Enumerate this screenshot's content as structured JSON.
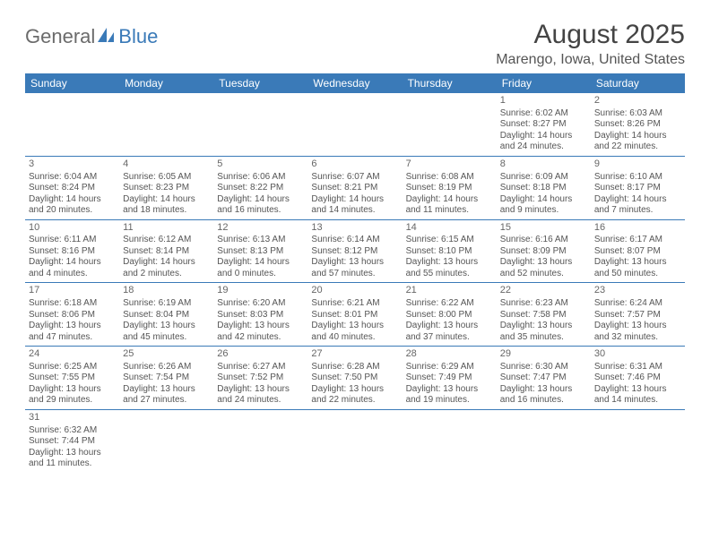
{
  "logo": {
    "part1": "General",
    "part2": "Blue"
  },
  "title": "August 2025",
  "location": "Marengo, Iowa, United States",
  "colors": {
    "header_bg": "#3a7ab8",
    "header_text": "#ffffff",
    "border": "#3a7ab8",
    "body_text": "#555555",
    "title_text": "#444444",
    "logo_gray": "#6b6b6b",
    "logo_blue": "#3a7ab8",
    "background": "#ffffff"
  },
  "day_headers": [
    "Sunday",
    "Monday",
    "Tuesday",
    "Wednesday",
    "Thursday",
    "Friday",
    "Saturday"
  ],
  "weeks": [
    [
      null,
      null,
      null,
      null,
      null,
      {
        "n": "1",
        "sunrise": "Sunrise: 6:02 AM",
        "sunset": "Sunset: 8:27 PM",
        "d1": "Daylight: 14 hours",
        "d2": "and 24 minutes."
      },
      {
        "n": "2",
        "sunrise": "Sunrise: 6:03 AM",
        "sunset": "Sunset: 8:26 PM",
        "d1": "Daylight: 14 hours",
        "d2": "and 22 minutes."
      }
    ],
    [
      {
        "n": "3",
        "sunrise": "Sunrise: 6:04 AM",
        "sunset": "Sunset: 8:24 PM",
        "d1": "Daylight: 14 hours",
        "d2": "and 20 minutes."
      },
      {
        "n": "4",
        "sunrise": "Sunrise: 6:05 AM",
        "sunset": "Sunset: 8:23 PM",
        "d1": "Daylight: 14 hours",
        "d2": "and 18 minutes."
      },
      {
        "n": "5",
        "sunrise": "Sunrise: 6:06 AM",
        "sunset": "Sunset: 8:22 PM",
        "d1": "Daylight: 14 hours",
        "d2": "and 16 minutes."
      },
      {
        "n": "6",
        "sunrise": "Sunrise: 6:07 AM",
        "sunset": "Sunset: 8:21 PM",
        "d1": "Daylight: 14 hours",
        "d2": "and 14 minutes."
      },
      {
        "n": "7",
        "sunrise": "Sunrise: 6:08 AM",
        "sunset": "Sunset: 8:19 PM",
        "d1": "Daylight: 14 hours",
        "d2": "and 11 minutes."
      },
      {
        "n": "8",
        "sunrise": "Sunrise: 6:09 AM",
        "sunset": "Sunset: 8:18 PM",
        "d1": "Daylight: 14 hours",
        "d2": "and 9 minutes."
      },
      {
        "n": "9",
        "sunrise": "Sunrise: 6:10 AM",
        "sunset": "Sunset: 8:17 PM",
        "d1": "Daylight: 14 hours",
        "d2": "and 7 minutes."
      }
    ],
    [
      {
        "n": "10",
        "sunrise": "Sunrise: 6:11 AM",
        "sunset": "Sunset: 8:16 PM",
        "d1": "Daylight: 14 hours",
        "d2": "and 4 minutes."
      },
      {
        "n": "11",
        "sunrise": "Sunrise: 6:12 AM",
        "sunset": "Sunset: 8:14 PM",
        "d1": "Daylight: 14 hours",
        "d2": "and 2 minutes."
      },
      {
        "n": "12",
        "sunrise": "Sunrise: 6:13 AM",
        "sunset": "Sunset: 8:13 PM",
        "d1": "Daylight: 14 hours",
        "d2": "and 0 minutes."
      },
      {
        "n": "13",
        "sunrise": "Sunrise: 6:14 AM",
        "sunset": "Sunset: 8:12 PM",
        "d1": "Daylight: 13 hours",
        "d2": "and 57 minutes."
      },
      {
        "n": "14",
        "sunrise": "Sunrise: 6:15 AM",
        "sunset": "Sunset: 8:10 PM",
        "d1": "Daylight: 13 hours",
        "d2": "and 55 minutes."
      },
      {
        "n": "15",
        "sunrise": "Sunrise: 6:16 AM",
        "sunset": "Sunset: 8:09 PM",
        "d1": "Daylight: 13 hours",
        "d2": "and 52 minutes."
      },
      {
        "n": "16",
        "sunrise": "Sunrise: 6:17 AM",
        "sunset": "Sunset: 8:07 PM",
        "d1": "Daylight: 13 hours",
        "d2": "and 50 minutes."
      }
    ],
    [
      {
        "n": "17",
        "sunrise": "Sunrise: 6:18 AM",
        "sunset": "Sunset: 8:06 PM",
        "d1": "Daylight: 13 hours",
        "d2": "and 47 minutes."
      },
      {
        "n": "18",
        "sunrise": "Sunrise: 6:19 AM",
        "sunset": "Sunset: 8:04 PM",
        "d1": "Daylight: 13 hours",
        "d2": "and 45 minutes."
      },
      {
        "n": "19",
        "sunrise": "Sunrise: 6:20 AM",
        "sunset": "Sunset: 8:03 PM",
        "d1": "Daylight: 13 hours",
        "d2": "and 42 minutes."
      },
      {
        "n": "20",
        "sunrise": "Sunrise: 6:21 AM",
        "sunset": "Sunset: 8:01 PM",
        "d1": "Daylight: 13 hours",
        "d2": "and 40 minutes."
      },
      {
        "n": "21",
        "sunrise": "Sunrise: 6:22 AM",
        "sunset": "Sunset: 8:00 PM",
        "d1": "Daylight: 13 hours",
        "d2": "and 37 minutes."
      },
      {
        "n": "22",
        "sunrise": "Sunrise: 6:23 AM",
        "sunset": "Sunset: 7:58 PM",
        "d1": "Daylight: 13 hours",
        "d2": "and 35 minutes."
      },
      {
        "n": "23",
        "sunrise": "Sunrise: 6:24 AM",
        "sunset": "Sunset: 7:57 PM",
        "d1": "Daylight: 13 hours",
        "d2": "and 32 minutes."
      }
    ],
    [
      {
        "n": "24",
        "sunrise": "Sunrise: 6:25 AM",
        "sunset": "Sunset: 7:55 PM",
        "d1": "Daylight: 13 hours",
        "d2": "and 29 minutes."
      },
      {
        "n": "25",
        "sunrise": "Sunrise: 6:26 AM",
        "sunset": "Sunset: 7:54 PM",
        "d1": "Daylight: 13 hours",
        "d2": "and 27 minutes."
      },
      {
        "n": "26",
        "sunrise": "Sunrise: 6:27 AM",
        "sunset": "Sunset: 7:52 PM",
        "d1": "Daylight: 13 hours",
        "d2": "and 24 minutes."
      },
      {
        "n": "27",
        "sunrise": "Sunrise: 6:28 AM",
        "sunset": "Sunset: 7:50 PM",
        "d1": "Daylight: 13 hours",
        "d2": "and 22 minutes."
      },
      {
        "n": "28",
        "sunrise": "Sunrise: 6:29 AM",
        "sunset": "Sunset: 7:49 PM",
        "d1": "Daylight: 13 hours",
        "d2": "and 19 minutes."
      },
      {
        "n": "29",
        "sunrise": "Sunrise: 6:30 AM",
        "sunset": "Sunset: 7:47 PM",
        "d1": "Daylight: 13 hours",
        "d2": "and 16 minutes."
      },
      {
        "n": "30",
        "sunrise": "Sunrise: 6:31 AM",
        "sunset": "Sunset: 7:46 PM",
        "d1": "Daylight: 13 hours",
        "d2": "and 14 minutes."
      }
    ],
    [
      {
        "n": "31",
        "sunrise": "Sunrise: 6:32 AM",
        "sunset": "Sunset: 7:44 PM",
        "d1": "Daylight: 13 hours",
        "d2": "and 11 minutes."
      },
      null,
      null,
      null,
      null,
      null,
      null
    ]
  ]
}
